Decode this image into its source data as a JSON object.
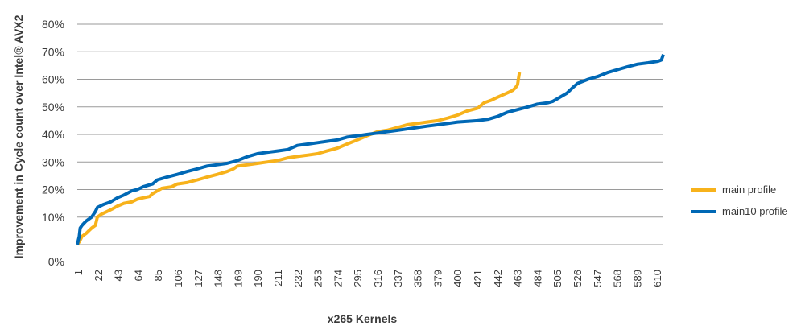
{
  "chart_data": {
    "type": "line",
    "title": "",
    "xlabel": "x265 Kernels",
    "ylabel": "Improvement in Cycle count over Intel® AVX2",
    "ylim": [
      0,
      80
    ],
    "xlim": [
      1,
      616
    ],
    "y_ticks": [
      "0%",
      "10%",
      "20%",
      "30%",
      "40%",
      "50%",
      "60%",
      "70%",
      "80%"
    ],
    "x_tick_labels": [
      "1",
      "22",
      "43",
      "64",
      "85",
      "106",
      "127",
      "148",
      "169",
      "190",
      "211",
      "232",
      "253",
      "274",
      "295",
      "316",
      "337",
      "358",
      "379",
      "400",
      "421",
      "442",
      "463",
      "484",
      "505",
      "526",
      "547",
      "568",
      "589",
      "610"
    ],
    "grid": "horizontal",
    "legend_position": "right",
    "series": [
      {
        "name": "main profile",
        "color": "#F7B21B",
        "points": [
          [
            1,
            0
          ],
          [
            3,
            1
          ],
          [
            6,
            3
          ],
          [
            10,
            4
          ],
          [
            16,
            6
          ],
          [
            20,
            7
          ],
          [
            22,
            10
          ],
          [
            26,
            11
          ],
          [
            32,
            12
          ],
          [
            38,
            13
          ],
          [
            43,
            14
          ],
          [
            50,
            15
          ],
          [
            58,
            15.5
          ],
          [
            64,
            16.5
          ],
          [
            70,
            17
          ],
          [
            77,
            17.5
          ],
          [
            80,
            18.5
          ],
          [
            85,
            19.5
          ],
          [
            90,
            20.5
          ],
          [
            100,
            21
          ],
          [
            106,
            22
          ],
          [
            116,
            22.5
          ],
          [
            127,
            23.5
          ],
          [
            137,
            24.5
          ],
          [
            148,
            25.5
          ],
          [
            158,
            26.5
          ],
          [
            165,
            27.5
          ],
          [
            169,
            28.5
          ],
          [
            180,
            29
          ],
          [
            190,
            29.5
          ],
          [
            200,
            30
          ],
          [
            211,
            30.5
          ],
          [
            222,
            31.5
          ],
          [
            232,
            32
          ],
          [
            243,
            32.5
          ],
          [
            253,
            33
          ],
          [
            263,
            34
          ],
          [
            274,
            35
          ],
          [
            284,
            36.5
          ],
          [
            295,
            38
          ],
          [
            305,
            39.5
          ],
          [
            316,
            41
          ],
          [
            326,
            41.5
          ],
          [
            337,
            42.5
          ],
          [
            347,
            43.5
          ],
          [
            358,
            44
          ],
          [
            368,
            44.5
          ],
          [
            379,
            45
          ],
          [
            390,
            46
          ],
          [
            400,
            47
          ],
          [
            410,
            48.5
          ],
          [
            421,
            49.5
          ],
          [
            428,
            51.5
          ],
          [
            436,
            52.5
          ],
          [
            442,
            53.5
          ],
          [
            452,
            55
          ],
          [
            458,
            56
          ],
          [
            461,
            57
          ],
          [
            463,
            58
          ],
          [
            465,
            62.5
          ]
        ]
      },
      {
        "name": "main10 profile",
        "color": "#0068B5",
        "points": [
          [
            1,
            0
          ],
          [
            3,
            3
          ],
          [
            4,
            6
          ],
          [
            6,
            7
          ],
          [
            10,
            8.5
          ],
          [
            16,
            10
          ],
          [
            20,
            12
          ],
          [
            22,
            13.5
          ],
          [
            28,
            14.5
          ],
          [
            36,
            15.5
          ],
          [
            43,
            17
          ],
          [
            50,
            18
          ],
          [
            58,
            19.5
          ],
          [
            64,
            20
          ],
          [
            70,
            21
          ],
          [
            80,
            22
          ],
          [
            85,
            23.5
          ],
          [
            95,
            24.5
          ],
          [
            106,
            25.5
          ],
          [
            116,
            26.5
          ],
          [
            127,
            27.5
          ],
          [
            137,
            28.5
          ],
          [
            148,
            29
          ],
          [
            158,
            29.5
          ],
          [
            169,
            30.5
          ],
          [
            180,
            32
          ],
          [
            190,
            33
          ],
          [
            200,
            33.5
          ],
          [
            211,
            34
          ],
          [
            222,
            34.5
          ],
          [
            232,
            36
          ],
          [
            243,
            36.5
          ],
          [
            253,
            37
          ],
          [
            263,
            37.5
          ],
          [
            274,
            38
          ],
          [
            284,
            39
          ],
          [
            295,
            39.5
          ],
          [
            305,
            40
          ],
          [
            316,
            40.5
          ],
          [
            326,
            41
          ],
          [
            337,
            41.5
          ],
          [
            347,
            42
          ],
          [
            358,
            42.5
          ],
          [
            368,
            43
          ],
          [
            379,
            43.5
          ],
          [
            390,
            44
          ],
          [
            400,
            44.5
          ],
          [
            421,
            45
          ],
          [
            432,
            45.5
          ],
          [
            442,
            46.5
          ],
          [
            452,
            48
          ],
          [
            463,
            49
          ],
          [
            474,
            50
          ],
          [
            484,
            51
          ],
          [
            495,
            51.5
          ],
          [
            500,
            52
          ],
          [
            505,
            53
          ],
          [
            515,
            55
          ],
          [
            521,
            57
          ],
          [
            526,
            58.5
          ],
          [
            537,
            60
          ],
          [
            547,
            61
          ],
          [
            558,
            62.5
          ],
          [
            568,
            63.5
          ],
          [
            578,
            64.5
          ],
          [
            589,
            65.5
          ],
          [
            600,
            66
          ],
          [
            610,
            66.5
          ],
          [
            614,
            67
          ],
          [
            616,
            69
          ]
        ]
      }
    ]
  }
}
